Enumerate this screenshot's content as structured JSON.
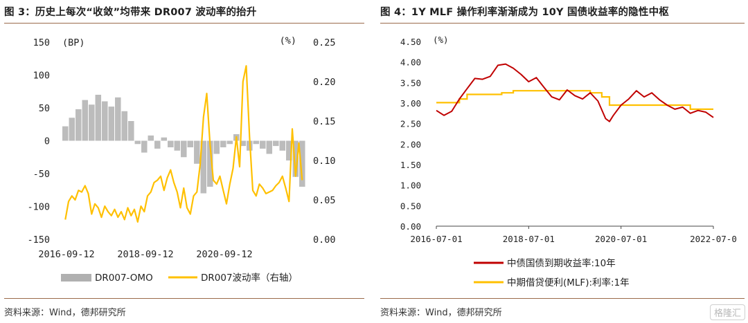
{
  "panels": {
    "left": {
      "title": "图 3：历史上每次“收敛”均带来 DR007 波动率的抬升"
    },
    "right": {
      "title": "图 4：1Y MLF 操作利率渐渐成为 10Y 国债收益率的隐性中枢"
    }
  },
  "source_text": "资料来源：Wind，德邦研究所",
  "watermark": "格隆汇",
  "colors": {
    "orange": "#FFC000",
    "gray": "#B0B0B0",
    "red": "#C00000",
    "title_rule": "#9a6a4a"
  },
  "chart_data": [
    {
      "type": "bar+line",
      "title": "图 3：历史上每次“收敛”均带来 DR007 波动率的抬升",
      "left_unit": "(BP)",
      "right_unit": "(%)",
      "left_axis": {
        "min": -150,
        "max": 150,
        "ticks": [
          "150",
          "100",
          "50",
          "0",
          "-50",
          "-100",
          "-150"
        ]
      },
      "right_axis": {
        "min": 0.0,
        "max": 0.25,
        "ticks": [
          "0.25",
          "0.20",
          "0.15",
          "0.10",
          "0.05",
          "0.00"
        ]
      },
      "x_ticks": [
        "2016-09-12",
        "2018-09-12",
        "2020-09-12"
      ],
      "x_range": [
        "2016-09-12",
        "2022-09-12"
      ],
      "series": [
        {
          "name": "DR007-OMO",
          "kind": "bar",
          "axis": "left",
          "dates": [
            "2016-09",
            "2016-11",
            "2017-01",
            "2017-03",
            "2017-05",
            "2017-07",
            "2017-09",
            "2017-11",
            "2018-01",
            "2018-03",
            "2018-05",
            "2018-07",
            "2018-09",
            "2018-11",
            "2019-01",
            "2019-03",
            "2019-05",
            "2019-07",
            "2019-09",
            "2019-11",
            "2020-01",
            "2020-03",
            "2020-05",
            "2020-07",
            "2020-09",
            "2020-11",
            "2021-01",
            "2021-03",
            "2021-05",
            "2021-07",
            "2021-09",
            "2021-11",
            "2022-01",
            "2022-03",
            "2022-05",
            "2022-07",
            "2022-09"
          ],
          "values": [
            22,
            35,
            48,
            62,
            55,
            70,
            60,
            52,
            66,
            45,
            30,
            -5,
            -18,
            8,
            -12,
            5,
            -10,
            -15,
            -25,
            -10,
            -35,
            -80,
            -70,
            -20,
            -10,
            -5,
            10,
            -8,
            -15,
            -5,
            -12,
            -20,
            -8,
            -15,
            -30,
            -55,
            -70
          ]
        },
        {
          "name": "DR007波动率（右轴）",
          "kind": "line",
          "axis": "right",
          "dates": [
            "2016-09",
            "2016-10",
            "2016-11",
            "2016-12",
            "2017-01",
            "2017-02",
            "2017-03",
            "2017-04",
            "2017-05",
            "2017-06",
            "2017-07",
            "2017-08",
            "2017-09",
            "2017-10",
            "2017-11",
            "2017-12",
            "2018-01",
            "2018-02",
            "2018-03",
            "2018-04",
            "2018-05",
            "2018-06",
            "2018-07",
            "2018-08",
            "2018-09",
            "2018-10",
            "2018-11",
            "2018-12",
            "2019-01",
            "2019-02",
            "2019-03",
            "2019-04",
            "2019-05",
            "2019-06",
            "2019-07",
            "2019-08",
            "2019-09",
            "2019-10",
            "2019-11",
            "2019-12",
            "2020-01",
            "2020-02",
            "2020-03",
            "2020-04",
            "2020-05",
            "2020-06",
            "2020-07",
            "2020-08",
            "2020-09",
            "2020-10",
            "2020-11",
            "2020-12",
            "2021-01",
            "2021-02",
            "2021-03",
            "2021-04",
            "2021-05",
            "2021-06",
            "2021-07",
            "2021-08",
            "2021-09",
            "2021-10",
            "2021-11",
            "2021-12",
            "2022-01",
            "2022-02",
            "2022-03",
            "2022-04",
            "2022-05",
            "2022-06",
            "2022-07",
            "2022-08",
            "2022-09"
          ],
          "values": [
            0.025,
            0.048,
            0.055,
            0.05,
            0.062,
            0.06,
            0.068,
            0.058,
            0.032,
            0.045,
            0.04,
            0.028,
            0.042,
            0.035,
            0.03,
            0.038,
            0.028,
            0.035,
            0.025,
            0.04,
            0.03,
            0.038,
            0.022,
            0.042,
            0.035,
            0.055,
            0.06,
            0.072,
            0.075,
            0.08,
            0.062,
            0.078,
            0.088,
            0.072,
            0.06,
            0.04,
            0.065,
            0.04,
            0.032,
            0.055,
            0.06,
            0.095,
            0.155,
            0.185,
            0.12,
            0.075,
            0.07,
            0.08,
            0.062,
            0.045,
            0.07,
            0.09,
            0.13,
            0.092,
            0.2,
            0.22,
            0.13,
            0.062,
            0.055,
            0.07,
            0.065,
            0.058,
            0.06,
            0.062,
            0.068,
            0.072,
            0.08,
            0.065,
            0.048,
            0.14,
            0.08,
            0.122,
            0.075
          ]
        }
      ],
      "legend": [
        "DR007-OMO",
        "DR007波动率（右轴）"
      ]
    },
    {
      "type": "line",
      "title": "图 4：1Y MLF 操作利率渐渐成为 10Y 国债收益率的隐性中枢",
      "unit": "(%)",
      "y_axis": {
        "min": 0.0,
        "max": 4.5,
        "ticks": [
          "4.50",
          "4.00",
          "3.50",
          "3.00",
          "2.50",
          "2.00",
          "1.50",
          "1.00",
          "0.50",
          "0.00"
        ]
      },
      "x_ticks": [
        "2016-07-01",
        "2018-07-01",
        "2020-07-01",
        "2022-07-0"
      ],
      "x_range": [
        "2016-07-01",
        "2022-07-01"
      ],
      "series": [
        {
          "name": "中债国债到期收益率:10年",
          "color": "#C00000",
          "dates": [
            "2016-07",
            "2016-09",
            "2016-11",
            "2017-01",
            "2017-03",
            "2017-05",
            "2017-07",
            "2017-09",
            "2017-11",
            "2018-01",
            "2018-03",
            "2018-05",
            "2018-07",
            "2018-09",
            "2018-11",
            "2019-01",
            "2019-03",
            "2019-05",
            "2019-07",
            "2019-09",
            "2019-11",
            "2020-01",
            "2020-03",
            "2020-04",
            "2020-05",
            "2020-07",
            "2020-09",
            "2020-11",
            "2021-01",
            "2021-03",
            "2021-05",
            "2021-07",
            "2021-09",
            "2021-11",
            "2022-01",
            "2022-03",
            "2022-05",
            "2022-07"
          ],
          "values": [
            2.82,
            2.7,
            2.8,
            3.1,
            3.35,
            3.6,
            3.58,
            3.65,
            3.92,
            3.95,
            3.85,
            3.7,
            3.52,
            3.62,
            3.38,
            3.15,
            3.08,
            3.32,
            3.18,
            3.1,
            3.25,
            3.05,
            2.62,
            2.55,
            2.7,
            2.95,
            3.1,
            3.3,
            3.15,
            3.25,
            3.08,
            2.95,
            2.85,
            2.9,
            2.75,
            2.82,
            2.78,
            2.65
          ]
        },
        {
          "name": "中期借贷便利(MLF):利率:1年",
          "color": "#FFC000",
          "dates": [
            "2016-07",
            "2017-01",
            "2017-03",
            "2017-12",
            "2018-03",
            "2019-11",
            "2020-02",
            "2020-04",
            "2022-01",
            "2022-07"
          ],
          "values": [
            3.01,
            3.1,
            3.21,
            3.25,
            3.3,
            3.25,
            3.15,
            2.95,
            2.85,
            2.85
          ]
        }
      ],
      "legend": [
        "中债国债到期收益率:10年",
        "中期借贷便利(MLF):利率:1年"
      ]
    }
  ]
}
